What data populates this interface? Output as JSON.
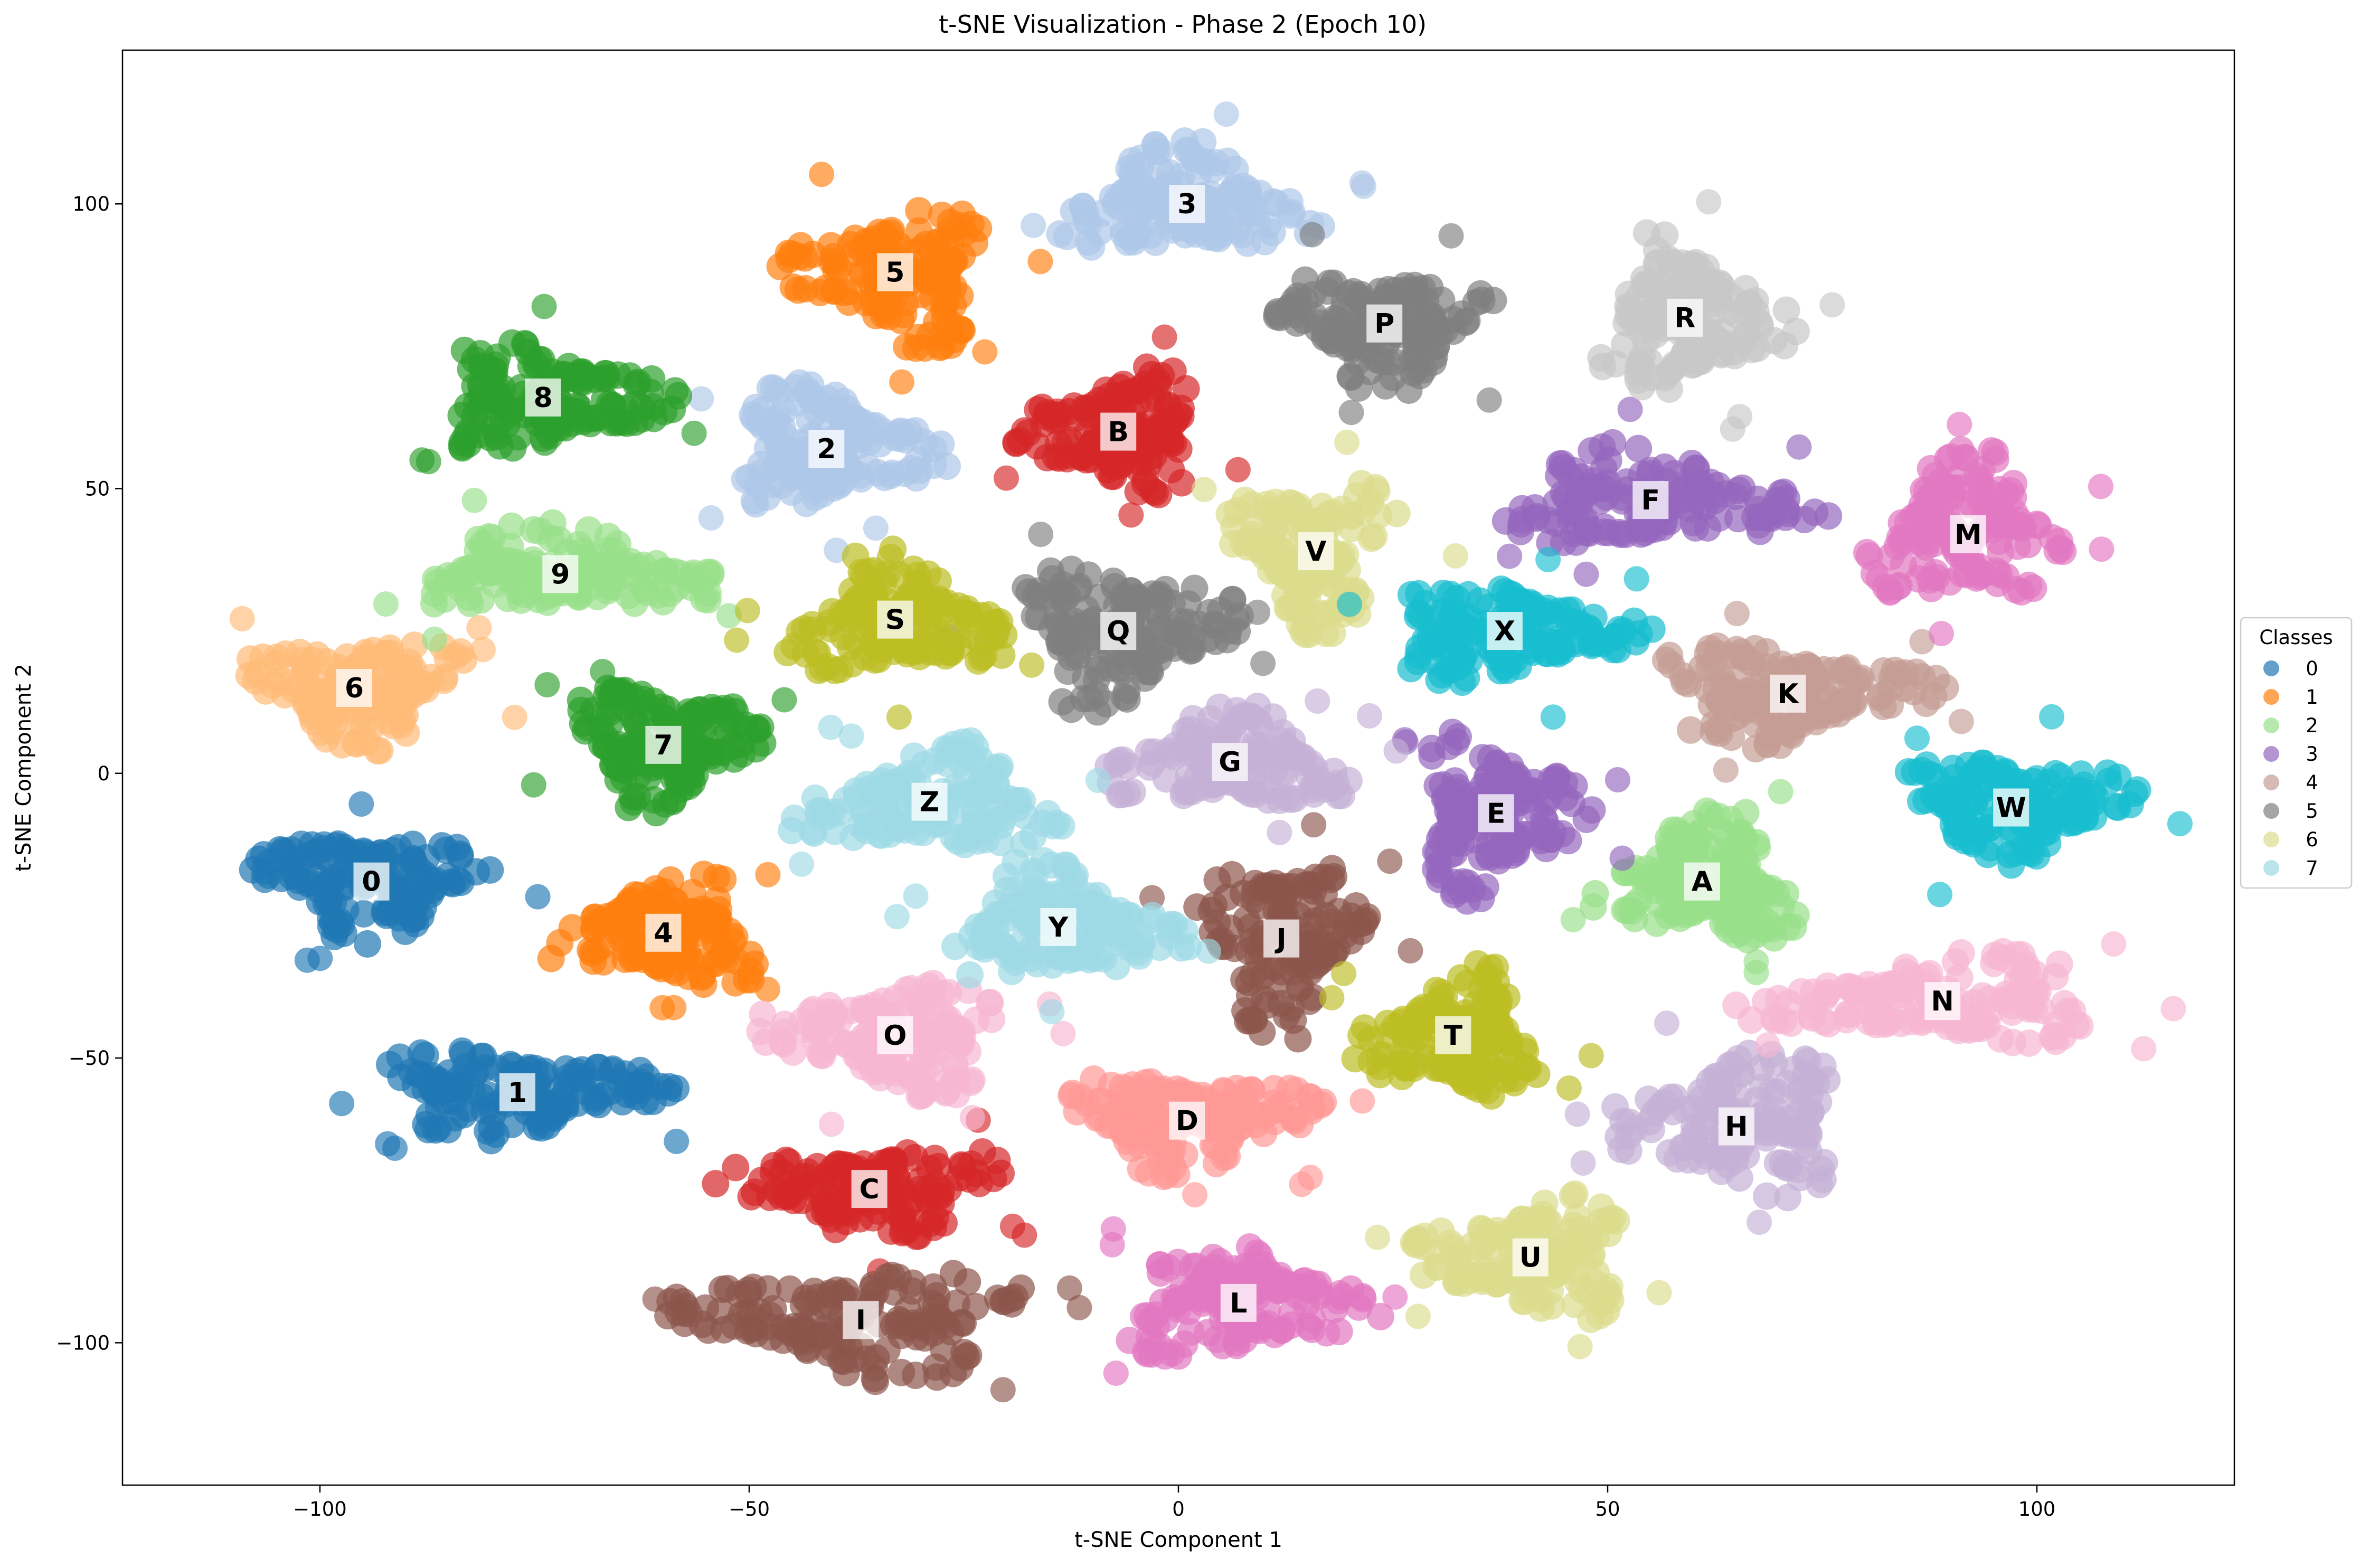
{
  "chart_data": {
    "type": "scatter",
    "title": "t-SNE Visualization - Phase 2 (Epoch 10)",
    "xlabel": "t-SNE Component 1",
    "ylabel": "t-SNE Component 2",
    "xlim": [
      -123,
      123
    ],
    "ylim": [
      -125,
      127
    ],
    "xticks": [
      -100,
      -50,
      0,
      50,
      100
    ],
    "yticks": [
      -100,
      -50,
      0,
      50,
      100
    ],
    "xtick_labels": [
      "−100",
      "−50",
      "0",
      "50",
      "100"
    ],
    "ytick_labels": [
      "−100",
      "−50",
      "0",
      "50",
      "100"
    ],
    "grid": false,
    "legend": {
      "title": "Classes",
      "placement": "right",
      "entries": [
        {
          "label": "0",
          "color": "#1f77b4"
        },
        {
          "label": "1",
          "color": "#ff7f0e"
        },
        {
          "label": "2",
          "color": "#98df8a"
        },
        {
          "label": "3",
          "color": "#9467bd"
        },
        {
          "label": "4",
          "color": "#c49c94"
        },
        {
          "label": "5",
          "color": "#7f7f7f"
        },
        {
          "label": "6",
          "color": "#dbdb8d"
        },
        {
          "label": "7",
          "color": "#9edae5"
        }
      ]
    },
    "clusters": [
      {
        "label": "0",
        "x": -94,
        "y": -19,
        "color": "#1f77b4",
        "rx": 14,
        "ry": 10
      },
      {
        "label": "1",
        "x": -77,
        "y": -56,
        "color": "#1f77b4",
        "rx": 17,
        "ry": 8
      },
      {
        "label": "2",
        "x": -41,
        "y": 57,
        "color": "#aec7e8",
        "rx": 13,
        "ry": 11
      },
      {
        "label": "3",
        "x": 1,
        "y": 100,
        "color": "#aec7e8",
        "rx": 15,
        "ry": 10
      },
      {
        "label": "4",
        "x": -60,
        "y": -28,
        "color": "#ff7f0e",
        "rx": 13,
        "ry": 10
      },
      {
        "label": "5",
        "x": -33,
        "y": 88,
        "color": "#ff7f0e",
        "rx": 12,
        "ry": 13
      },
      {
        "label": "6",
        "x": -96,
        "y": 15,
        "color": "#ffbb78",
        "rx": 13,
        "ry": 10
      },
      {
        "label": "7",
        "x": -60,
        "y": 5,
        "color": "#2ca02c",
        "rx": 11,
        "ry": 11
      },
      {
        "label": "8",
        "x": -74,
        "y": 66,
        "color": "#2ca02c",
        "rx": 14,
        "ry": 10
      },
      {
        "label": "9",
        "x": -72,
        "y": 35,
        "color": "#98df8a",
        "rx": 19,
        "ry": 8
      },
      {
        "label": "A",
        "x": 61,
        "y": -19,
        "color": "#98df8a",
        "rx": 12,
        "ry": 12
      },
      {
        "label": "B",
        "x": -7,
        "y": 60,
        "color": "#d62728",
        "rx": 11,
        "ry": 11
      },
      {
        "label": "C",
        "x": -36,
        "y": -73,
        "color": "#d62728",
        "rx": 17,
        "ry": 8
      },
      {
        "label": "D",
        "x": 1,
        "y": -61,
        "color": "#ff9896",
        "rx": 15,
        "ry": 9
      },
      {
        "label": "E",
        "x": 37,
        "y": -7,
        "color": "#9467bd",
        "rx": 10,
        "ry": 15
      },
      {
        "label": "F",
        "x": 55,
        "y": 48,
        "color": "#9467bd",
        "rx": 19,
        "ry": 9
      },
      {
        "label": "G",
        "x": 6,
        "y": 2,
        "color": "#c5b0d5",
        "rx": 15,
        "ry": 9
      },
      {
        "label": "H",
        "x": 65,
        "y": -62,
        "color": "#c5b0d5",
        "rx": 15,
        "ry": 13
      },
      {
        "label": "I",
        "x": -37,
        "y": -96,
        "color": "#8c564b",
        "rx": 21,
        "ry": 10
      },
      {
        "label": "J",
        "x": 12,
        "y": -29,
        "color": "#8c564b",
        "rx": 10,
        "ry": 17
      },
      {
        "label": "K",
        "x": 71,
        "y": 14,
        "color": "#c49c94",
        "rx": 17,
        "ry": 9
      },
      {
        "label": "L",
        "x": 7,
        "y": -93,
        "color": "#e377c2",
        "rx": 15,
        "ry": 11
      },
      {
        "label": "M",
        "x": 92,
        "y": 42,
        "color": "#e377c2",
        "rx": 12,
        "ry": 14
      },
      {
        "label": "N",
        "x": 89,
        "y": -40,
        "color": "#f7b6d2",
        "rx": 22,
        "ry": 8
      },
      {
        "label": "O",
        "x": -33,
        "y": -46,
        "color": "#f7b6d2",
        "rx": 15,
        "ry": 10
      },
      {
        "label": "P",
        "x": 24,
        "y": 79,
        "color": "#7f7f7f",
        "rx": 13,
        "ry": 11
      },
      {
        "label": "Q",
        "x": -7,
        "y": 25,
        "color": "#7f7f7f",
        "rx": 13,
        "ry": 13
      },
      {
        "label": "R",
        "x": 59,
        "y": 80,
        "color": "#c7c7c7",
        "rx": 12,
        "ry": 14
      },
      {
        "label": "S",
        "x": -33,
        "y": 27,
        "color": "#bcbd22",
        "rx": 13,
        "ry": 11
      },
      {
        "label": "T",
        "x": 32,
        "y": -46,
        "color": "#bcbd22",
        "rx": 11,
        "ry": 12
      },
      {
        "label": "U",
        "x": 41,
        "y": -85,
        "color": "#dbdb8d",
        "rx": 13,
        "ry": 11
      },
      {
        "label": "V",
        "x": 16,
        "y": 39,
        "color": "#dbdb8d",
        "rx": 10,
        "ry": 14
      },
      {
        "label": "W",
        "x": 97,
        "y": -6,
        "color": "#17becf",
        "rx": 14,
        "ry": 10
      },
      {
        "label": "X",
        "x": 38,
        "y": 25,
        "color": "#17becf",
        "rx": 15,
        "ry": 9
      },
      {
        "label": "Y",
        "x": -14,
        "y": -27,
        "color": "#9edae5",
        "rx": 14,
        "ry": 11
      },
      {
        "label": "Z",
        "x": -29,
        "y": -5,
        "color": "#9edae5",
        "rx": 16,
        "ry": 10
      }
    ]
  }
}
